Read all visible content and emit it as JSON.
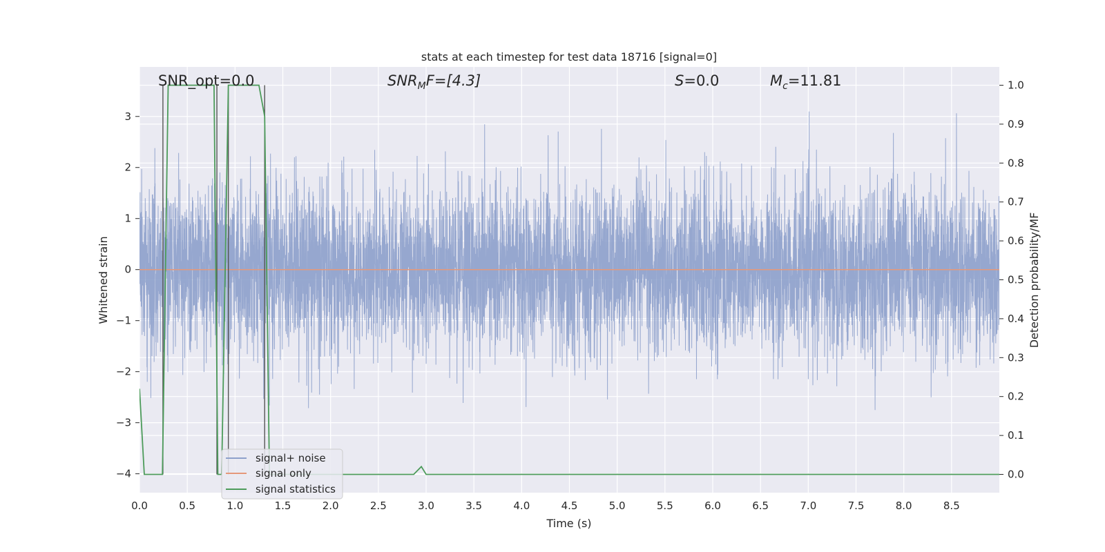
{
  "chart_data": {
    "type": "line",
    "title": "stats at each timestep for test data 18716 [signal=0]",
    "xlabel": "Time (s)",
    "ylabel_left": "Whitened strain",
    "ylabel_right": "Detection probability/MF",
    "xlim": [
      0.0,
      9.0
    ],
    "ylim_left": [
      -4.37,
      3.97
    ],
    "ylim_right": [
      -0.047,
      1.047
    ],
    "xticks": [
      "0.0",
      "0.5",
      "1.0",
      "1.5",
      "2.0",
      "2.5",
      "3.0",
      "3.5",
      "4.0",
      "4.5",
      "5.0",
      "5.5",
      "6.0",
      "6.5",
      "7.0",
      "7.5",
      "8.0",
      "8.5"
    ],
    "yticks_left": [
      "−4",
      "−3",
      "−2",
      "−1",
      "0",
      "1",
      "2",
      "3"
    ],
    "yticks_right": [
      "0.0",
      "0.1",
      "0.2",
      "0.3",
      "0.4",
      "0.5",
      "0.6",
      "0.7",
      "0.8",
      "0.9",
      "1.0"
    ],
    "grid": true,
    "annotations": {
      "snr_opt": "SNR_opt=0.0",
      "snr_mf_main": "SNR",
      "snr_mf_sub": "M",
      "snr_mf_rest": "F=[4.3]",
      "s_italic": "S",
      "s_rest": "=0.0",
      "mc_main": "M",
      "mc_sub": "c",
      "mc_rest": "=11.81"
    },
    "legend": {
      "placement": "lower-left",
      "entries": [
        "signal+ noise",
        "signal only",
        "signal statistics"
      ]
    },
    "series": [
      {
        "name": "signal+ noise",
        "color": "#8da0cb",
        "kind": "noise",
        "sample_rate_hz": 2048,
        "typical_envelope": [
          -1.7,
          1.7
        ],
        "extreme_envelope": [
          -4.0,
          3.5
        ]
      },
      {
        "name": "signal only",
        "color": "#e5987a",
        "x": [
          0.0,
          9.0
        ],
        "y": [
          0.0,
          0.0
        ]
      },
      {
        "name": "signal statistics",
        "color": "#4c9b5a",
        "axis": "right",
        "x": [
          0.0,
          0.05,
          0.24,
          0.3,
          0.78,
          0.82,
          0.86,
          0.93,
          0.98,
          1.25,
          1.31,
          1.36,
          2.87,
          2.95,
          3.0,
          9.0
        ],
        "y": [
          0.22,
          0.0,
          0.0,
          1.0,
          1.0,
          0.0,
          0.0,
          1.0,
          1.0,
          1.0,
          0.92,
          0.0,
          0.0,
          0.02,
          0.0,
          0.0
        ]
      }
    ],
    "detection_markers": {
      "color": "#555555",
      "x": [
        0.245,
        0.81,
        0.93,
        1.31
      ]
    }
  }
}
